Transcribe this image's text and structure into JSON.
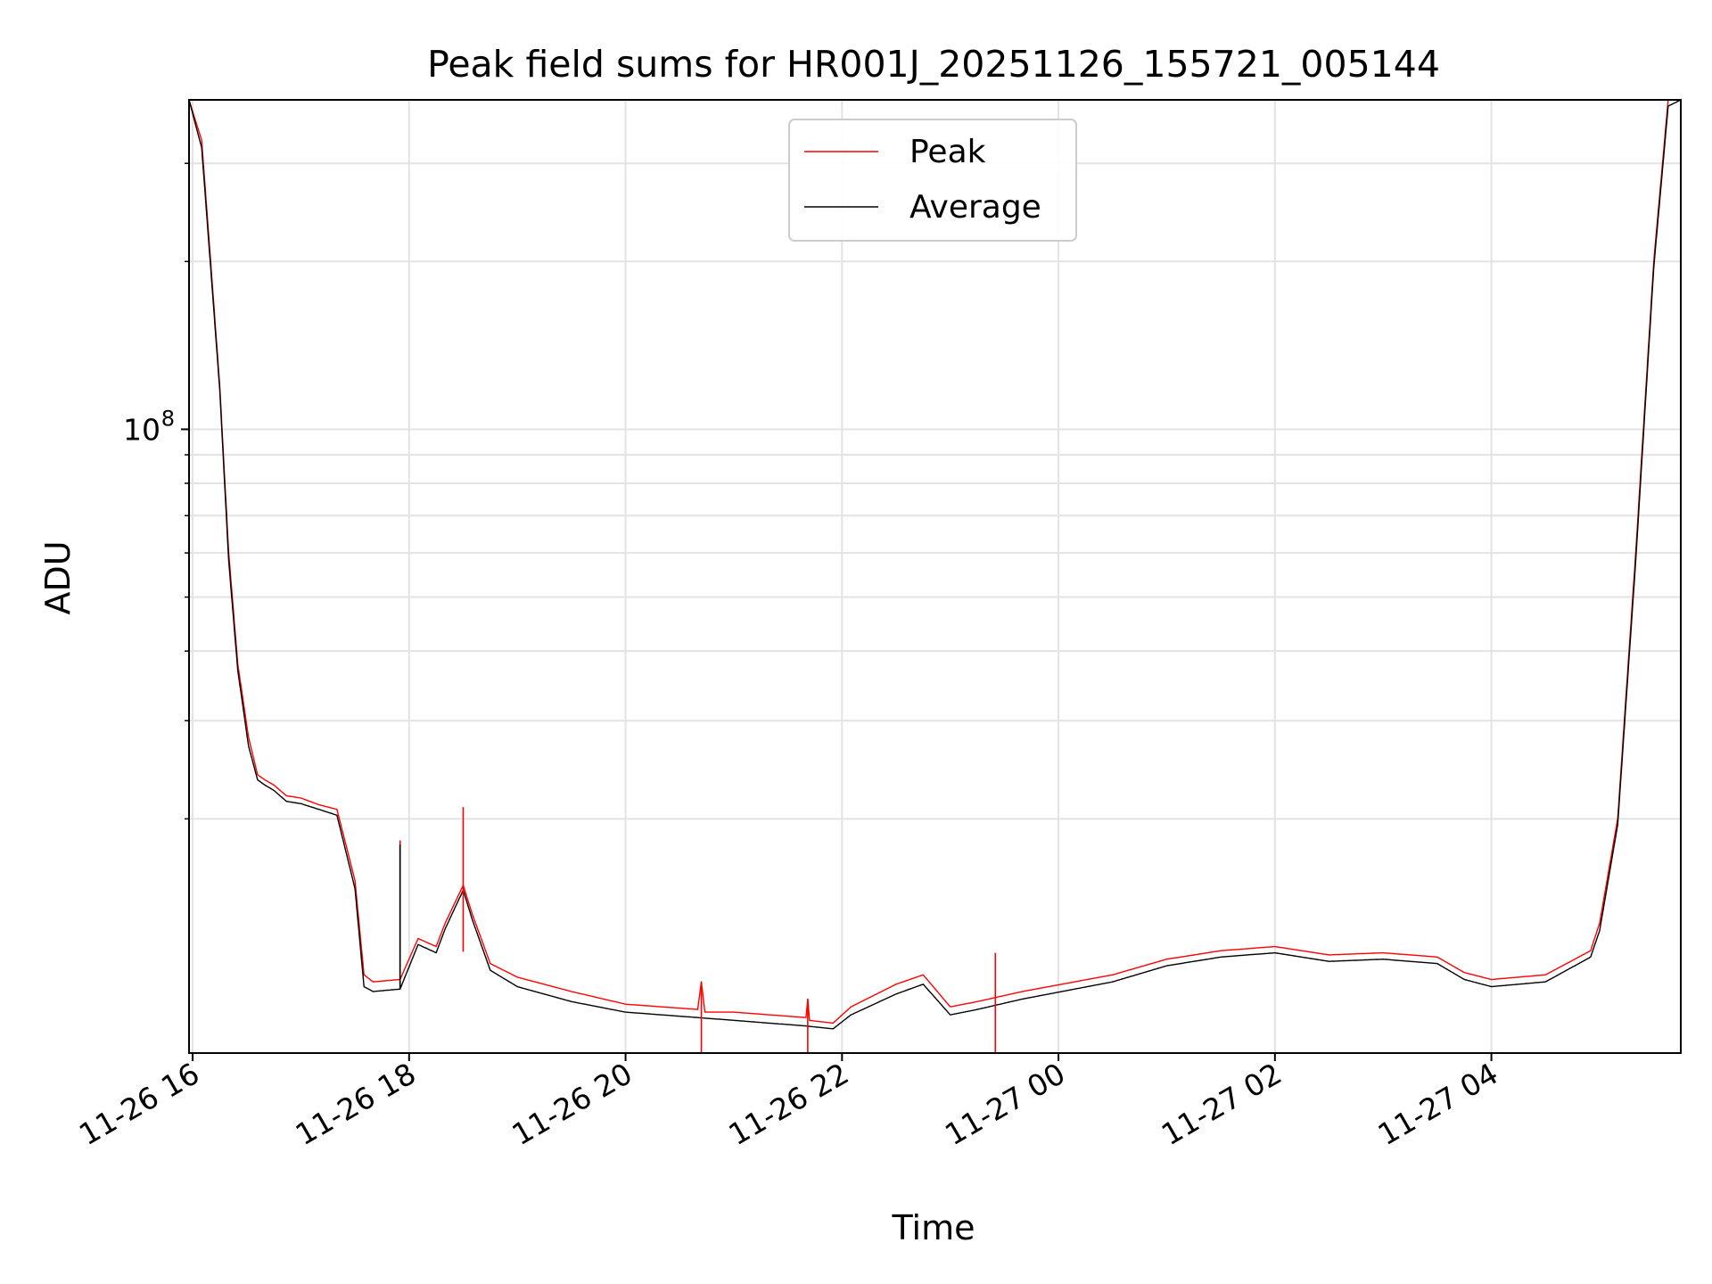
{
  "chart_data": {
    "type": "line",
    "title": "Peak field sums for HR001J_20251126_155721_005144",
    "xlabel": "Time",
    "ylabel": "ADU",
    "yscale": "log",
    "grid": true,
    "legend_placement": "upper center",
    "xlim": [
      "11-26 15:58",
      "11-27 05:45"
    ],
    "ylim": [
      7600000.0,
      390000000.0
    ],
    "x_ticks": [
      "11-26 16",
      "11-26 18",
      "11-26 20",
      "11-26 22",
      "11-27 00",
      "11-27 02",
      "11-27 04"
    ],
    "y_ticks": [
      {
        "label_base": "10",
        "label_exp": "8",
        "value": 100000000
      }
    ],
    "series": [
      {
        "name": "Peak",
        "color": "#ff0000",
        "x": [
          "11-26 15:58",
          "11-26 16:05",
          "11-26 16:10",
          "11-26 16:15",
          "11-26 16:20",
          "11-26 16:25",
          "11-26 16:31",
          "11-26 16:36",
          "11-26 16:40",
          "11-26 16:45",
          "11-26 16:52",
          "11-26 17:00",
          "11-26 17:10",
          "11-26 17:20",
          "11-26 17:30",
          "11-26 17:35",
          "11-26 17:40",
          "11-26 17:55",
          "11-26 18:05",
          "11-26 18:15",
          "11-26 18:20",
          "11-26 18:30",
          "11-26 18:35",
          "11-26 18:45",
          "11-26 19:00",
          "11-26 19:30",
          "11-26 20:00",
          "11-26 20:40",
          "11-26 20:42",
          "11-26 20:44",
          "11-26 21:00",
          "11-26 21:40",
          "11-26 21:41",
          "11-26 21:42",
          "11-26 21:55",
          "11-26 22:05",
          "11-26 22:30",
          "11-26 22:45",
          "11-26 23:00",
          "11-26 23:15",
          "11-26 23:40",
          "11-27 00:30",
          "11-27 01:00",
          "11-27 01:30",
          "11-27 02:00",
          "11-27 02:30",
          "11-27 03:00",
          "11-27 03:30",
          "11-27 03:45",
          "11-27 04:00",
          "11-27 04:30",
          "11-27 04:55",
          "11-27 05:00",
          "11-27 05:10",
          "11-27 05:20",
          "11-27 05:30",
          "11-27 05:38",
          "11-27 05:45"
        ],
        "values": [
          390000000,
          330000000,
          200000000,
          120000000,
          60000000,
          38000000,
          28000000,
          24000000,
          23500000,
          23000000,
          22000000,
          21800000,
          21200000,
          20800000,
          15500000,
          10500000,
          10200000,
          10300000,
          12200000,
          11800000,
          13000000,
          15200000,
          13500000,
          11000000,
          10400000,
          9800000,
          9300000,
          9100000,
          10200000,
          9000000,
          9000000,
          8800000,
          9500000,
          8700000,
          8600000,
          9200000,
          10100000,
          10500000,
          9200000,
          9400000,
          9800000,
          10500000,
          11200000,
          11600000,
          11800000,
          11400000,
          11500000,
          11300000,
          10600000,
          10300000,
          10500000,
          11600000,
          13000000,
          20000000,
          60000000,
          200000000,
          390000000,
          390000000
        ]
      },
      {
        "name": "Average",
        "color": "#000000",
        "x": [
          "11-26 15:58",
          "11-26 16:05",
          "11-26 16:10",
          "11-26 16:15",
          "11-26 16:20",
          "11-26 16:25",
          "11-26 16:31",
          "11-26 16:36",
          "11-26 16:40",
          "11-26 16:45",
          "11-26 16:52",
          "11-26 17:00",
          "11-26 17:10",
          "11-26 17:20",
          "11-26 17:30",
          "11-26 17:35",
          "11-26 17:40",
          "11-26 17:55",
          "11-26 18:05",
          "11-26 18:15",
          "11-26 18:20",
          "11-26 18:30",
          "11-26 18:35",
          "11-26 18:45",
          "11-26 19:00",
          "11-26 19:30",
          "11-26 20:00",
          "11-26 20:40",
          "11-26 21:00",
          "11-26 21:40",
          "11-26 21:55",
          "11-26 22:05",
          "11-26 22:30",
          "11-26 22:45",
          "11-26 23:00",
          "11-26 23:15",
          "11-26 23:40",
          "11-27 00:30",
          "11-27 01:00",
          "11-27 01:30",
          "11-27 02:00",
          "11-27 02:30",
          "11-27 03:00",
          "11-27 03:30",
          "11-27 03:45",
          "11-27 04:00",
          "11-27 04:30",
          "11-27 04:55",
          "11-27 05:00",
          "11-27 05:10",
          "11-27 05:20",
          "11-27 05:30",
          "11-27 05:38",
          "11-27 05:45"
        ],
        "values": [
          390000000,
          320000000,
          195000000,
          118000000,
          58000000,
          37000000,
          27000000,
          23500000,
          23000000,
          22500000,
          21500000,
          21300000,
          20800000,
          20300000,
          15000000,
          10000000,
          9800000,
          9900000,
          11900000,
          11500000,
          12700000,
          14900000,
          13200000,
          10700000,
          10000000,
          9400000,
          9000000,
          8800000,
          8700000,
          8500000,
          8400000,
          8900000,
          9700000,
          10100000,
          8900000,
          9100000,
          9500000,
          10200000,
          10900000,
          11300000,
          11500000,
          11100000,
          11200000,
          11000000,
          10300000,
          10000000,
          10200000,
          11300000,
          12600000,
          19500000,
          58000000,
          195000000,
          380000000,
          390000000
        ]
      }
    ],
    "spikes": [
      {
        "series": "Peak",
        "x": "11-26 17:55",
        "value": 18300000
      },
      {
        "series": "Average",
        "x": "11-26 17:55",
        "value": 18000000
      },
      {
        "series": "Peak",
        "x": "11-26 18:30",
        "value": 21000000
      },
      {
        "series": "Peak",
        "x": "11-26 20:42",
        "value": 10200000
      },
      {
        "series": "Peak",
        "x": "11-26 21:41",
        "value": 9500000
      },
      {
        "series": "Peak",
        "x": "11-26 23:25",
        "value": 11500000
      }
    ]
  }
}
